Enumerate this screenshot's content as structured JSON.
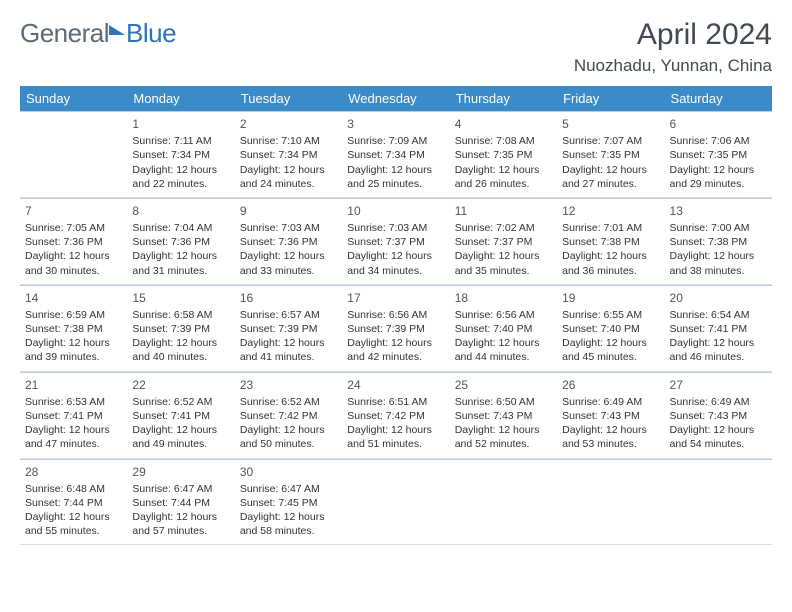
{
  "logo": {
    "first": "General",
    "second": "Blue"
  },
  "header": {
    "title": "April 2024",
    "location": "Nuozhadu, Yunnan, China"
  },
  "dow": [
    "Sunday",
    "Monday",
    "Tuesday",
    "Wednesday",
    "Thursday",
    "Friday",
    "Saturday"
  ],
  "colors": {
    "header_bar": "#3b8bc9",
    "header_text": "#ffffff",
    "title_text": "#404a56",
    "logo_gray": "#5a6b7a",
    "logo_blue": "#2e75b6",
    "cell_border": "#3b6a9a55"
  },
  "layout": {
    "cols": 7,
    "rows": 5,
    "first_day_col": 1
  },
  "days": [
    {
      "n": "1",
      "sunrise": "7:11 AM",
      "sunset": "7:34 PM",
      "daylight": "12 hours and 22 minutes."
    },
    {
      "n": "2",
      "sunrise": "7:10 AM",
      "sunset": "7:34 PM",
      "daylight": "12 hours and 24 minutes."
    },
    {
      "n": "3",
      "sunrise": "7:09 AM",
      "sunset": "7:34 PM",
      "daylight": "12 hours and 25 minutes."
    },
    {
      "n": "4",
      "sunrise": "7:08 AM",
      "sunset": "7:35 PM",
      "daylight": "12 hours and 26 minutes."
    },
    {
      "n": "5",
      "sunrise": "7:07 AM",
      "sunset": "7:35 PM",
      "daylight": "12 hours and 27 minutes."
    },
    {
      "n": "6",
      "sunrise": "7:06 AM",
      "sunset": "7:35 PM",
      "daylight": "12 hours and 29 minutes."
    },
    {
      "n": "7",
      "sunrise": "7:05 AM",
      "sunset": "7:36 PM",
      "daylight": "12 hours and 30 minutes."
    },
    {
      "n": "8",
      "sunrise": "7:04 AM",
      "sunset": "7:36 PM",
      "daylight": "12 hours and 31 minutes."
    },
    {
      "n": "9",
      "sunrise": "7:03 AM",
      "sunset": "7:36 PM",
      "daylight": "12 hours and 33 minutes."
    },
    {
      "n": "10",
      "sunrise": "7:03 AM",
      "sunset": "7:37 PM",
      "daylight": "12 hours and 34 minutes."
    },
    {
      "n": "11",
      "sunrise": "7:02 AM",
      "sunset": "7:37 PM",
      "daylight": "12 hours and 35 minutes."
    },
    {
      "n": "12",
      "sunrise": "7:01 AM",
      "sunset": "7:38 PM",
      "daylight": "12 hours and 36 minutes."
    },
    {
      "n": "13",
      "sunrise": "7:00 AM",
      "sunset": "7:38 PM",
      "daylight": "12 hours and 38 minutes."
    },
    {
      "n": "14",
      "sunrise": "6:59 AM",
      "sunset": "7:38 PM",
      "daylight": "12 hours and 39 minutes."
    },
    {
      "n": "15",
      "sunrise": "6:58 AM",
      "sunset": "7:39 PM",
      "daylight": "12 hours and 40 minutes."
    },
    {
      "n": "16",
      "sunrise": "6:57 AM",
      "sunset": "7:39 PM",
      "daylight": "12 hours and 41 minutes."
    },
    {
      "n": "17",
      "sunrise": "6:56 AM",
      "sunset": "7:39 PM",
      "daylight": "12 hours and 42 minutes."
    },
    {
      "n": "18",
      "sunrise": "6:56 AM",
      "sunset": "7:40 PM",
      "daylight": "12 hours and 44 minutes."
    },
    {
      "n": "19",
      "sunrise": "6:55 AM",
      "sunset": "7:40 PM",
      "daylight": "12 hours and 45 minutes."
    },
    {
      "n": "20",
      "sunrise": "6:54 AM",
      "sunset": "7:41 PM",
      "daylight": "12 hours and 46 minutes."
    },
    {
      "n": "21",
      "sunrise": "6:53 AM",
      "sunset": "7:41 PM",
      "daylight": "12 hours and 47 minutes."
    },
    {
      "n": "22",
      "sunrise": "6:52 AM",
      "sunset": "7:41 PM",
      "daylight": "12 hours and 49 minutes."
    },
    {
      "n": "23",
      "sunrise": "6:52 AM",
      "sunset": "7:42 PM",
      "daylight": "12 hours and 50 minutes."
    },
    {
      "n": "24",
      "sunrise": "6:51 AM",
      "sunset": "7:42 PM",
      "daylight": "12 hours and 51 minutes."
    },
    {
      "n": "25",
      "sunrise": "6:50 AM",
      "sunset": "7:43 PM",
      "daylight": "12 hours and 52 minutes."
    },
    {
      "n": "26",
      "sunrise": "6:49 AM",
      "sunset": "7:43 PM",
      "daylight": "12 hours and 53 minutes."
    },
    {
      "n": "27",
      "sunrise": "6:49 AM",
      "sunset": "7:43 PM",
      "daylight": "12 hours and 54 minutes."
    },
    {
      "n": "28",
      "sunrise": "6:48 AM",
      "sunset": "7:44 PM",
      "daylight": "12 hours and 55 minutes."
    },
    {
      "n": "29",
      "sunrise": "6:47 AM",
      "sunset": "7:44 PM",
      "daylight": "12 hours and 57 minutes."
    },
    {
      "n": "30",
      "sunrise": "6:47 AM",
      "sunset": "7:45 PM",
      "daylight": "12 hours and 58 minutes."
    }
  ],
  "labels": {
    "sunrise": "Sunrise: ",
    "sunset": "Sunset: ",
    "daylight": "Daylight: "
  }
}
